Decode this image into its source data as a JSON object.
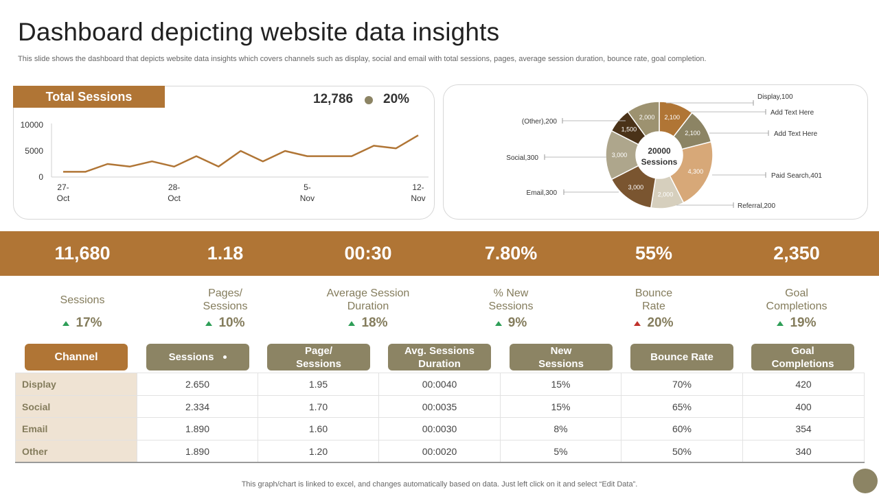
{
  "page": {
    "title": "Dashboard depicting website data insights",
    "subtitle": "This slide shows the dashboard that depicts website data insights which covers channels such as display, social and email with total sessions, pages, average session duration, bounce rate, goal completion.",
    "footer": "This graph/chart is linked to excel,  and changes automatically based on data. Just left click on it and select “Edit Data”."
  },
  "total_sessions": {
    "label": "Total Sessions",
    "value": "12,786",
    "change": "20%"
  },
  "kpis": [
    {
      "value": "11,680",
      "label": "Sessions",
      "change": "17%",
      "direction": "up"
    },
    {
      "value": "1.18",
      "label": "Pages/ Sessions",
      "change": "10%",
      "direction": "up"
    },
    {
      "value": "00:30",
      "label": "Average Session Duration",
      "change": "18%",
      "direction": "up"
    },
    {
      "value": "7.80%",
      "label": "% New Sessions",
      "change": "9%",
      "direction": "up"
    },
    {
      "value": "55%",
      "label": "Bounce Rate",
      "change": "20%",
      "direction": "down"
    },
    {
      "value": "2,350",
      "label": "Goal Completions",
      "change": "19%",
      "direction": "up"
    }
  ],
  "table": {
    "headers": [
      "Channel",
      "Sessions",
      "Page/ Sessions",
      "Avg. Sessions Duration",
      "New Sessions",
      "Bounce Rate",
      "Goal Completions"
    ],
    "rows": [
      [
        "Display",
        "2.650",
        "1.95",
        "00:0040",
        "15%",
        "70%",
        "420"
      ],
      [
        "Social",
        "2.334",
        "1.70",
        "00:0035",
        "15%",
        "65%",
        "400"
      ],
      [
        "Email",
        "1.890",
        "1.60",
        "00:0030",
        "8%",
        "60%",
        "354"
      ],
      [
        "Other",
        "1.890",
        "1.20",
        "00:0020",
        "5%",
        "50%",
        "340"
      ]
    ]
  },
  "colors": {
    "brand": "#b07535",
    "olive": "#8c8464",
    "channel_bg": "#efe3d3",
    "up": "#2e9e57",
    "down": "#c0312b"
  },
  "chart_data": [
    {
      "type": "line",
      "title": "Total Sessions",
      "x_tick_labels": [
        "27-\nOct",
        "28-\nOct",
        "5-\nNov",
        "12-\nNov"
      ],
      "y_ticks": [
        0,
        5000,
        10000
      ],
      "ylim": [
        0,
        10000
      ],
      "values": [
        1000,
        1000,
        2500,
        2000,
        3000,
        2000,
        4000,
        2000,
        5000,
        3000,
        5000,
        4000,
        4000,
        4000,
        6000,
        5500,
        8000
      ],
      "color": "#b07535",
      "grid": false
    },
    {
      "type": "pie",
      "center_label": "20000\nSessions",
      "slices": [
        {
          "value": 2100,
          "label": "2,100",
          "color": "#b07535"
        },
        {
          "value": 2100,
          "label": "2,100",
          "color": "#8c8464"
        },
        {
          "value": 4300,
          "label": "4,300",
          "color": "#d7a878"
        },
        {
          "value": 2000,
          "label": "2,000",
          "color": "#d6cfbd"
        },
        {
          "value": 3000,
          "label": "3,000",
          "color": "#7a5530"
        },
        {
          "value": 3000,
          "label": "3,000",
          "color": "#aea68c"
        },
        {
          "value": 1500,
          "label": "1,500",
          "color": "#4a3218"
        },
        {
          "value": 2000,
          "label": "2,000",
          "color": "#9d9270"
        }
      ],
      "callouts": [
        "Display,100",
        "Add Text Here",
        "Add Text Here",
        "Paid Search,401",
        "Referral,200",
        "Email,300",
        "Social,300",
        "(Other),200"
      ]
    }
  ]
}
